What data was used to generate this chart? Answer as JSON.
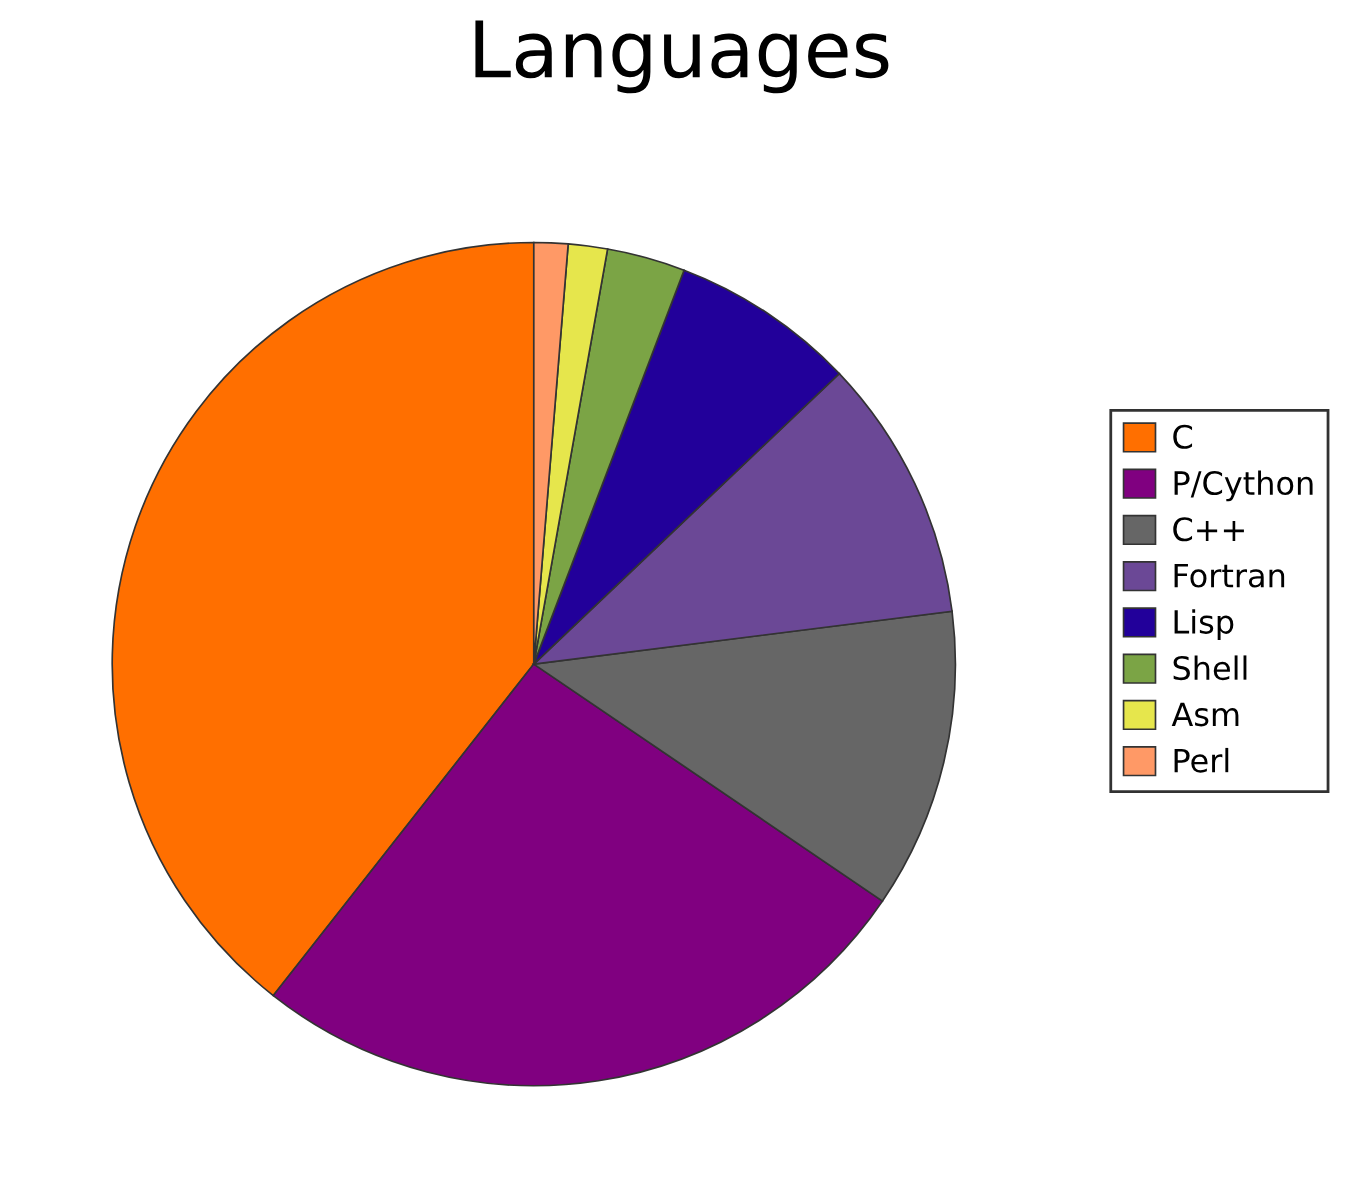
{
  "chart_data": {
    "type": "pie",
    "title": "Languages",
    "categories": [
      "C",
      "P/Cython",
      "C++",
      "Fortran",
      "Lisp",
      "Shell",
      "Asm",
      "Perl"
    ],
    "values": [
      39.4,
      26.1,
      11.5,
      10.1,
      7.1,
      3.0,
      1.5,
      1.3
    ],
    "colors": [
      "#ff6f00",
      "#800080",
      "#666666",
      "#6b4896",
      "#22009a",
      "#7ba445",
      "#e6e64c",
      "#ff9966"
    ],
    "legend": "right"
  }
}
